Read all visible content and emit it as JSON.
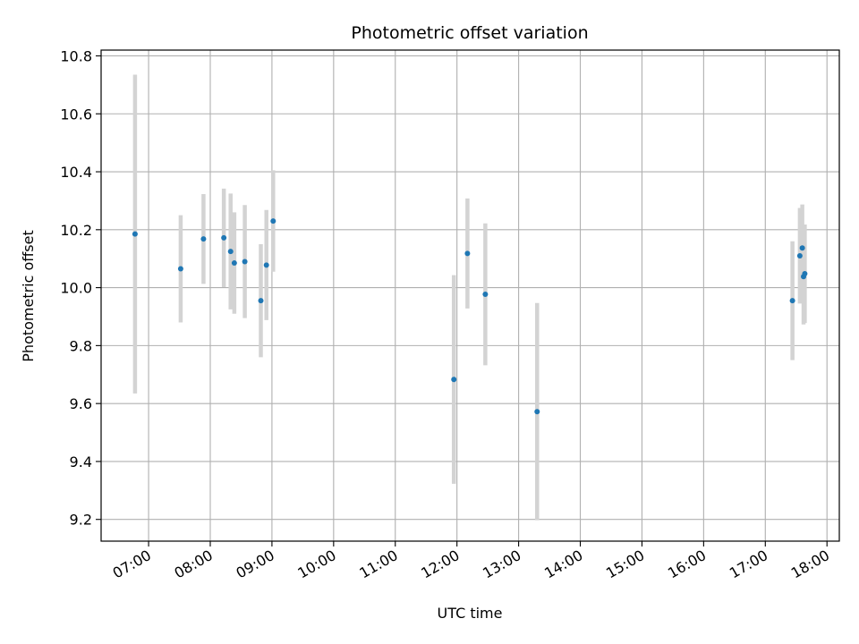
{
  "chart_data": {
    "type": "scatter",
    "title": "Photometric offset variation",
    "xlabel": "UTC time",
    "ylabel": "Photometric offset",
    "x_unit": "hours UTC",
    "xlim": [
      6.23,
      18.2
    ],
    "ylim": [
      9.125,
      10.82
    ],
    "x_ticks": [
      7,
      8,
      9,
      10,
      11,
      12,
      13,
      14,
      15,
      16,
      17,
      18
    ],
    "x_tick_labels": [
      "07:00",
      "08:00",
      "09:00",
      "10:00",
      "11:00",
      "12:00",
      "13:00",
      "14:00",
      "15:00",
      "16:00",
      "17:00",
      "18:00"
    ],
    "y_ticks": [
      9.2,
      9.4,
      9.6,
      9.8,
      10.0,
      10.2,
      10.4,
      10.6,
      10.8
    ],
    "y_tick_labels": [
      "9.2",
      "9.4",
      "9.6",
      "9.8",
      "10.0",
      "10.2",
      "10.4",
      "10.6",
      "10.8"
    ],
    "grid": true,
    "colors": {
      "point": "#1f77b4",
      "errorbar": "#d3d3d3",
      "grid": "#b0b0b0"
    },
    "points": [
      {
        "x": 6.78,
        "y": 10.185,
        "err": 0.55
      },
      {
        "x": 7.52,
        "y": 10.065,
        "err": 0.185
      },
      {
        "x": 7.89,
        "y": 10.168,
        "err": 0.155
      },
      {
        "x": 8.22,
        "y": 10.172,
        "err": 0.17
      },
      {
        "x": 8.33,
        "y": 10.125,
        "err": 0.2
      },
      {
        "x": 8.39,
        "y": 10.085,
        "err": 0.175
      },
      {
        "x": 8.56,
        "y": 10.09,
        "err": 0.195
      },
      {
        "x": 8.82,
        "y": 9.955,
        "err": 0.195
      },
      {
        "x": 8.91,
        "y": 10.078,
        "err": 0.19
      },
      {
        "x": 9.02,
        "y": 10.23,
        "err": 0.175
      },
      {
        "x": 11.95,
        "y": 9.683,
        "err": 0.36
      },
      {
        "x": 12.17,
        "y": 10.118,
        "err": 0.19
      },
      {
        "x": 12.46,
        "y": 9.977,
        "err": 0.245
      },
      {
        "x": 13.3,
        "y": 9.572,
        "err": 0.375
      },
      {
        "x": 17.44,
        "y": 9.955,
        "err": 0.205
      },
      {
        "x": 17.56,
        "y": 10.11,
        "err": 0.165
      },
      {
        "x": 17.6,
        "y": 10.137,
        "err": 0.15
      },
      {
        "x": 17.62,
        "y": 10.038,
        "err": 0.165
      },
      {
        "x": 17.64,
        "y": 10.048,
        "err": 0.17
      }
    ]
  }
}
